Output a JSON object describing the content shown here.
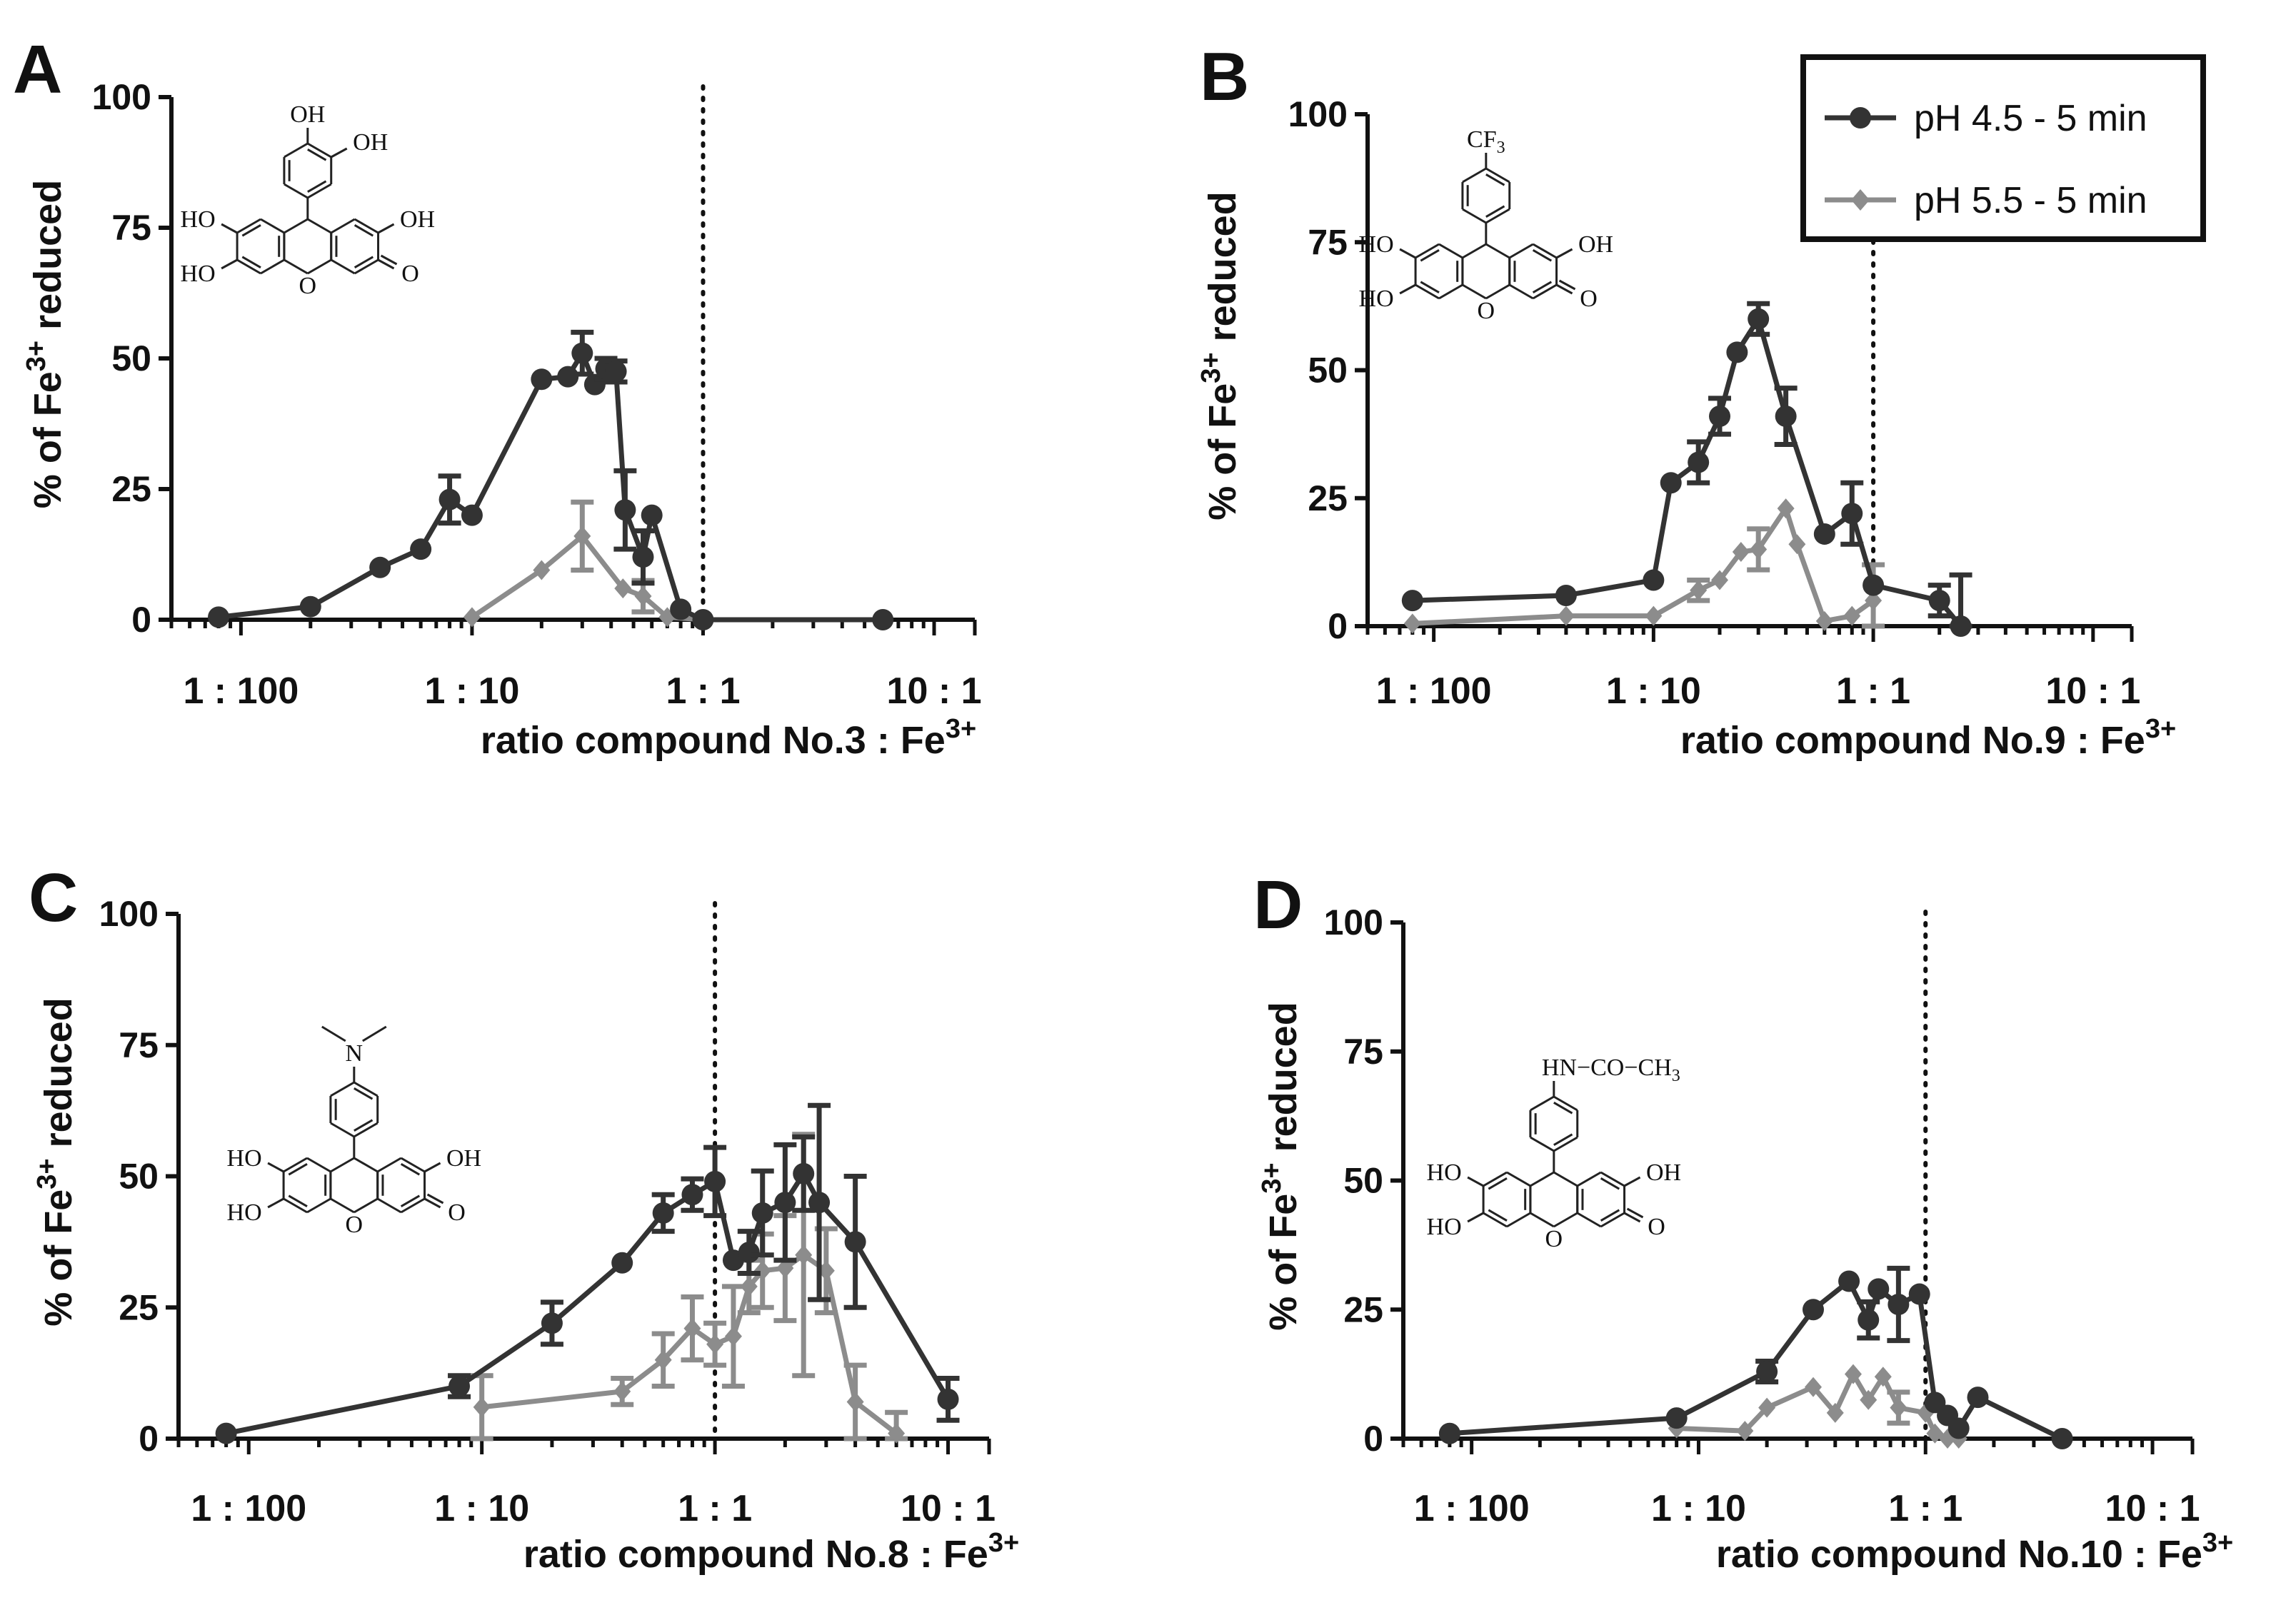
{
  "figure": {
    "legend": {
      "entries": [
        {
          "label": "pH 4.5 - 5 min",
          "color": "#333333",
          "marker": "circle"
        },
        {
          "label": "pH 5.5 - 5 min",
          "color": "#8c8c8c",
          "marker": "diamond"
        }
      ]
    }
  },
  "chart_data": [
    {
      "panel": "A",
      "type": "line",
      "x_scale": "log",
      "xlabel": "ratio compound No.3 : Fe",
      "xlabel_sup": "3+",
      "ylabel": "% of  Fe",
      "ylabel_sup": "3+",
      "ylabel_tail": " reduced",
      "xlim": [
        0.005,
        15
      ],
      "ylim": [
        0,
        100
      ],
      "yticks": [
        "0",
        "25",
        "50",
        "75",
        "100"
      ],
      "xticks": [
        {
          "value": 0.01,
          "label": "1 : 100"
        },
        {
          "value": 0.1,
          "label": "1 : 10"
        },
        {
          "value": 1,
          "label": "1 : 1"
        },
        {
          "value": 10,
          "label": "10 : 1"
        }
      ],
      "vline_x": 1,
      "structure": {
        "substituent": "catechol",
        "texts": [
          "OH",
          "OH",
          "HO",
          "OH",
          "HO",
          "O",
          "O"
        ]
      },
      "series": [
        {
          "name": "pH 4.5 - 5 min",
          "color": "#333333",
          "marker": "circle",
          "points": [
            {
              "x": 0.008,
              "y": 0.5,
              "err": 0
            },
            {
              "x": 0.02,
              "y": 2.5,
              "err": 0
            },
            {
              "x": 0.04,
              "y": 10,
              "err": 0
            },
            {
              "x": 0.06,
              "y": 13.5,
              "err": 0
            },
            {
              "x": 0.08,
              "y": 23,
              "err": 4.5
            },
            {
              "x": 0.1,
              "y": 20,
              "err": 0
            },
            {
              "x": 0.2,
              "y": 46,
              "err": 0
            },
            {
              "x": 0.26,
              "y": 46.5,
              "err": 0
            },
            {
              "x": 0.3,
              "y": 51,
              "err": 4
            },
            {
              "x": 0.34,
              "y": 45,
              "err": 0
            },
            {
              "x": 0.38,
              "y": 48,
              "err": 2
            },
            {
              "x": 0.42,
              "y": 47.5,
              "err": 2
            },
            {
              "x": 0.46,
              "y": 21,
              "err": 7.5
            },
            {
              "x": 0.55,
              "y": 12,
              "err": 5
            },
            {
              "x": 0.6,
              "y": 20,
              "err": 0
            },
            {
              "x": 0.8,
              "y": 2,
              "err": 0
            },
            {
              "x": 1.0,
              "y": 0,
              "err": 0
            },
            {
              "x": 6.0,
              "y": 0,
              "err": 0
            }
          ]
        },
        {
          "name": "pH 5.5 - 5 min",
          "color": "#8c8c8c",
          "marker": "diamond",
          "points": [
            {
              "x": 0.1,
              "y": 0.5,
              "err": 0
            },
            {
              "x": 0.2,
              "y": 9.5,
              "err": 0
            },
            {
              "x": 0.3,
              "y": 16,
              "err": 6.5
            },
            {
              "x": 0.45,
              "y": 6,
              "err": 0
            },
            {
              "x": 0.55,
              "y": 4.5,
              "err": 3
            },
            {
              "x": 0.7,
              "y": 0.5,
              "err": 0
            },
            {
              "x": 1.0,
              "y": 0,
              "err": 0
            }
          ]
        }
      ]
    },
    {
      "panel": "B",
      "type": "line",
      "x_scale": "log",
      "xlabel": "ratio compound No.9 : Fe",
      "xlabel_sup": "3+",
      "ylabel": "% of  Fe",
      "ylabel_sup": "3+",
      "ylabel_tail": " reduced",
      "xlim": [
        0.005,
        15
      ],
      "ylim": [
        0,
        100
      ],
      "yticks": [
        "0",
        "25",
        "50",
        "75",
        "100"
      ],
      "xticks": [
        {
          "value": 0.01,
          "label": "1 : 100"
        },
        {
          "value": 0.1,
          "label": "1 : 10"
        },
        {
          "value": 1,
          "label": "1 : 1"
        },
        {
          "value": 10,
          "label": "10 : 1"
        }
      ],
      "vline_x": 1,
      "structure": {
        "substituent": "CF3",
        "texts": [
          "CF",
          "3",
          "HO",
          "OH",
          "HO",
          "O",
          "O"
        ]
      },
      "series": [
        {
          "name": "pH 4.5 - 5 min",
          "color": "#333333",
          "marker": "circle",
          "points": [
            {
              "x": 0.008,
              "y": 5,
              "err": 0
            },
            {
              "x": 0.04,
              "y": 6,
              "err": 0
            },
            {
              "x": 0.1,
              "y": 9,
              "err": 0
            },
            {
              "x": 0.12,
              "y": 28,
              "err": 0
            },
            {
              "x": 0.16,
              "y": 32,
              "err": 4
            },
            {
              "x": 0.2,
              "y": 41,
              "err": 3.5
            },
            {
              "x": 0.24,
              "y": 53.5,
              "err": 0
            },
            {
              "x": 0.3,
              "y": 60,
              "err": 3
            },
            {
              "x": 0.4,
              "y": 41,
              "err": 5.5
            },
            {
              "x": 0.6,
              "y": 18,
              "err": 0
            },
            {
              "x": 0.8,
              "y": 22,
              "err": 6
            },
            {
              "x": 1.0,
              "y": 8,
              "err": 0
            },
            {
              "x": 2.0,
              "y": 5,
              "err": 3
            },
            {
              "x": 2.5,
              "y": 0,
              "err": 10
            }
          ]
        },
        {
          "name": "pH 5.5 - 5 min",
          "color": "#8c8c8c",
          "marker": "diamond",
          "points": [
            {
              "x": 0.008,
              "y": 0.5,
              "err": 0
            },
            {
              "x": 0.04,
              "y": 2,
              "err": 0
            },
            {
              "x": 0.1,
              "y": 2,
              "err": 0
            },
            {
              "x": 0.16,
              "y": 7,
              "err": 2
            },
            {
              "x": 0.2,
              "y": 9,
              "err": 0
            },
            {
              "x": 0.25,
              "y": 14.5,
              "err": 0
            },
            {
              "x": 0.3,
              "y": 15,
              "err": 4
            },
            {
              "x": 0.4,
              "y": 23,
              "err": 0
            },
            {
              "x": 0.45,
              "y": 16,
              "err": 0
            },
            {
              "x": 0.6,
              "y": 1,
              "err": 0
            },
            {
              "x": 0.8,
              "y": 2,
              "err": 0
            },
            {
              "x": 1.0,
              "y": 5,
              "err": 7
            }
          ]
        }
      ]
    },
    {
      "panel": "C",
      "type": "line",
      "x_scale": "log",
      "xlabel": "ratio compound No.8 : Fe",
      "xlabel_sup": "3+",
      "ylabel": "% of  Fe",
      "ylabel_sup": "3+",
      "ylabel_tail": " reduced",
      "xlim": [
        0.005,
        15
      ],
      "ylim": [
        0,
        100
      ],
      "yticks": [
        "0",
        "25",
        "50",
        "75",
        "100"
      ],
      "xticks": [
        {
          "value": 0.01,
          "label": "1 : 100"
        },
        {
          "value": 0.1,
          "label": "1 : 10"
        },
        {
          "value": 1,
          "label": "1 : 1"
        },
        {
          "value": 10,
          "label": "10 : 1"
        }
      ],
      "vline_x": 1,
      "structure": {
        "substituent": "NMe2",
        "texts": [
          "N",
          "HO",
          "OH",
          "HO",
          "O",
          "O"
        ]
      },
      "series": [
        {
          "name": "pH 4.5 - 5 min",
          "color": "#333333",
          "marker": "circle",
          "points": [
            {
              "x": 0.008,
              "y": 1,
              "err": 0
            },
            {
              "x": 0.08,
              "y": 10,
              "err": 2
            },
            {
              "x": 0.2,
              "y": 22,
              "err": 4
            },
            {
              "x": 0.4,
              "y": 33.5,
              "err": 0
            },
            {
              "x": 0.6,
              "y": 43,
              "err": 3.5
            },
            {
              "x": 0.8,
              "y": 46.5,
              "err": 3
            },
            {
              "x": 1.0,
              "y": 49,
              "err": 6.5
            },
            {
              "x": 1.2,
              "y": 34,
              "err": 0
            },
            {
              "x": 1.4,
              "y": 35.5,
              "err": 4
            },
            {
              "x": 1.6,
              "y": 43,
              "err": 8
            },
            {
              "x": 2.0,
              "y": 45,
              "err": 11
            },
            {
              "x": 2.4,
              "y": 50.5,
              "err": 7
            },
            {
              "x": 2.8,
              "y": 45,
              "err": 18.5
            },
            {
              "x": 4.0,
              "y": 37.5,
              "err": 12.5
            },
            {
              "x": 10.0,
              "y": 7.5,
              "err": 4
            }
          ]
        },
        {
          "name": "pH 5.5 - 5 min",
          "color": "#8c8c8c",
          "marker": "diamond",
          "points": [
            {
              "x": 0.1,
              "y": 6,
              "err": 6
            },
            {
              "x": 0.4,
              "y": 9,
              "err": 2.5
            },
            {
              "x": 0.6,
              "y": 15,
              "err": 5
            },
            {
              "x": 0.8,
              "y": 21,
              "err": 6
            },
            {
              "x": 1.0,
              "y": 18,
              "err": 4
            },
            {
              "x": 1.2,
              "y": 19.5,
              "err": 9.5
            },
            {
              "x": 1.4,
              "y": 29,
              "err": 5
            },
            {
              "x": 1.6,
              "y": 32,
              "err": 7
            },
            {
              "x": 2.0,
              "y": 32.5,
              "err": 10
            },
            {
              "x": 2.4,
              "y": 35,
              "err": 23
            },
            {
              "x": 3.0,
              "y": 32,
              "err": 8
            },
            {
              "x": 4.0,
              "y": 7,
              "err": 7
            },
            {
              "x": 6.0,
              "y": 1,
              "err": 4
            }
          ]
        }
      ]
    },
    {
      "panel": "D",
      "type": "line",
      "x_scale": "log",
      "xlabel": "ratio compound No.10 : Fe",
      "xlabel_sup": "3+",
      "ylabel": "% of  Fe",
      "ylabel_sup": "3+",
      "ylabel_tail": " reduced",
      "xlim": [
        0.005,
        15
      ],
      "ylim": [
        0,
        100
      ],
      "yticks": [
        "0",
        "25",
        "50",
        "75",
        "100"
      ],
      "xticks": [
        {
          "value": 0.01,
          "label": "1 : 100"
        },
        {
          "value": 0.1,
          "label": "1 : 10"
        },
        {
          "value": 1,
          "label": "1 : 1"
        },
        {
          "value": 10,
          "label": "10 : 1"
        }
      ],
      "vline_x": 1,
      "structure": {
        "substituent": "NHAc",
        "texts": [
          "HN−CO−CH",
          "3",
          "HO",
          "OH",
          "HO",
          "O",
          "O"
        ]
      },
      "series": [
        {
          "name": "pH 4.5 - 5 min",
          "color": "#333333",
          "marker": "circle",
          "points": [
            {
              "x": 0.008,
              "y": 1,
              "err": 0
            },
            {
              "x": 0.08,
              "y": 4,
              "err": 0
            },
            {
              "x": 0.2,
              "y": 13,
              "err": 2
            },
            {
              "x": 0.32,
              "y": 25,
              "err": 0
            },
            {
              "x": 0.46,
              "y": 30.5,
              "err": 0
            },
            {
              "x": 0.56,
              "y": 23,
              "err": 3.5
            },
            {
              "x": 0.62,
              "y": 29,
              "err": 0
            },
            {
              "x": 0.76,
              "y": 26,
              "err": 7
            },
            {
              "x": 0.94,
              "y": 28,
              "err": 0
            },
            {
              "x": 1.1,
              "y": 7,
              "err": 0
            },
            {
              "x": 1.25,
              "y": 4.5,
              "err": 0
            },
            {
              "x": 1.4,
              "y": 2,
              "err": 0
            },
            {
              "x": 1.7,
              "y": 8,
              "err": 0
            },
            {
              "x": 4.0,
              "y": 0,
              "err": 0
            }
          ]
        },
        {
          "name": "pH 5.5 - 5 min",
          "color": "#8c8c8c",
          "marker": "diamond",
          "points": [
            {
              "x": 0.08,
              "y": 2,
              "err": 0
            },
            {
              "x": 0.16,
              "y": 1.5,
              "err": 0
            },
            {
              "x": 0.2,
              "y": 6,
              "err": 0
            },
            {
              "x": 0.32,
              "y": 10,
              "err": 0
            },
            {
              "x": 0.4,
              "y": 5,
              "err": 0
            },
            {
              "x": 0.48,
              "y": 12.5,
              "err": 0
            },
            {
              "x": 0.56,
              "y": 7.5,
              "err": 0
            },
            {
              "x": 0.65,
              "y": 12,
              "err": 0
            },
            {
              "x": 0.76,
              "y": 6,
              "err": 3
            },
            {
              "x": 1.0,
              "y": 5,
              "err": 0
            },
            {
              "x": 1.1,
              "y": 1,
              "err": 0
            },
            {
              "x": 1.25,
              "y": 0,
              "err": 0
            },
            {
              "x": 1.4,
              "y": 0,
              "err": 0
            }
          ]
        }
      ]
    }
  ]
}
